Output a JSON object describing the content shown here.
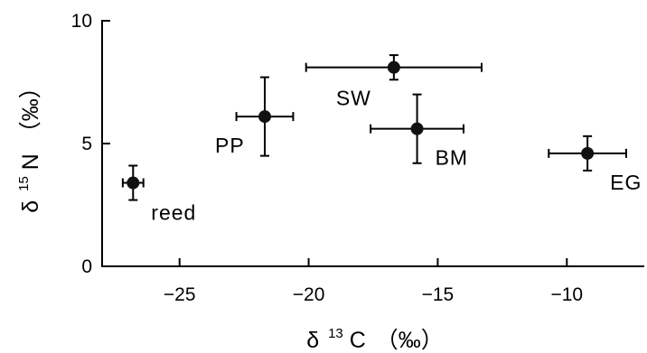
{
  "chart_data": {
    "type": "scatter",
    "title": "",
    "xlabel": {
      "prefix": "δ",
      "sup": "13",
      "main": "C",
      "unit": "（‰）"
    },
    "ylabel": {
      "prefix": "δ",
      "sup": "15",
      "main": "N",
      "unit": "（‰）"
    },
    "xlim": [
      -28,
      -7
    ],
    "ylim": [
      0,
      10
    ],
    "x_ticks": [
      -25,
      -20,
      -15,
      -10
    ],
    "y_ticks": [
      0,
      5,
      10
    ],
    "x_tick_labels": [
      "−25",
      "−20",
      "−15",
      "−10"
    ],
    "y_tick_labels": [
      "0",
      "5",
      "10"
    ],
    "grid": false,
    "points": [
      {
        "label": "reed",
        "x": -26.8,
        "y": 3.4,
        "x_err": 0.4,
        "y_err": 0.7
      },
      {
        "label": "PP",
        "x": -21.7,
        "y": 6.1,
        "x_err": 1.1,
        "y_err": 1.6
      },
      {
        "label": "SW",
        "x": -16.7,
        "y": 8.1,
        "x_err": 3.4,
        "y_err": 0.5
      },
      {
        "label": "BM",
        "x": -15.8,
        "y": 5.6,
        "x_err": 1.8,
        "y_err": 1.4
      },
      {
        "label": "EG",
        "x": -9.2,
        "y": 4.6,
        "x_err": 1.5,
        "y_err": 0.7
      }
    ]
  }
}
